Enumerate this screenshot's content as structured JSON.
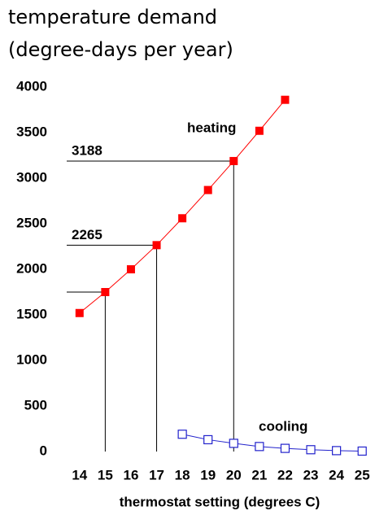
{
  "chart_data": {
    "type": "line",
    "title": "temperature demand",
    "subtitle": "(degree-days per year)",
    "x_label": "thermostat setting (degrees C)",
    "xlim": [
      13.5,
      25.5
    ],
    "xticks": [
      14,
      15,
      16,
      17,
      18,
      19,
      20,
      21,
      22,
      23,
      24,
      25
    ],
    "ylim": [
      0,
      4000
    ],
    "yticks": [
      0,
      500,
      1000,
      1500,
      2000,
      2500,
      3000,
      3500,
      4000
    ],
    "series": [
      {
        "name": "heating",
        "color": "#ff0000",
        "marker": "filled",
        "x": [
          14,
          15,
          16,
          17,
          18,
          19,
          20,
          21,
          22
        ],
        "values": [
          1520,
          1750,
          2000,
          2265,
          2560,
          2870,
          3188,
          3520,
          3860
        ]
      },
      {
        "name": "cooling",
        "color": "#2222cc",
        "marker": "open",
        "x": [
          18,
          19,
          20,
          21,
          22,
          23,
          24,
          25
        ],
        "values": [
          190,
          130,
          90,
          55,
          35,
          20,
          10,
          5
        ]
      }
    ],
    "guides": [
      {
        "x": 15,
        "y": 1750,
        "labeled": false
      },
      {
        "x": 17,
        "y": 2265,
        "labeled": true
      },
      {
        "x": 20,
        "y": 3188,
        "labeled": true
      }
    ]
  }
}
